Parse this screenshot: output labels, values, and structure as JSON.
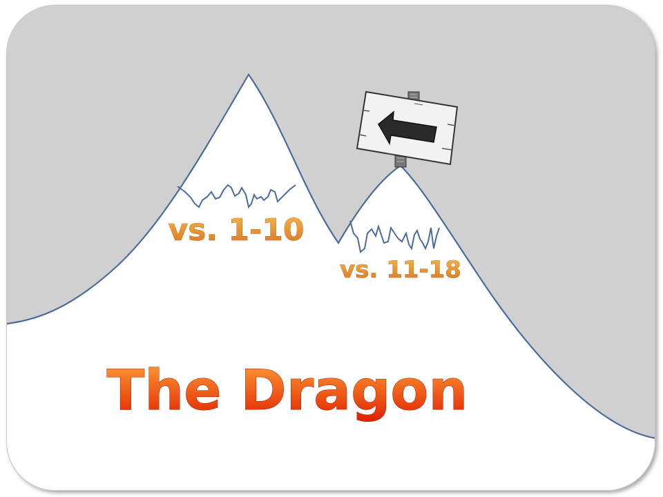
{
  "title": "The Dragon",
  "labels": {
    "left_peak": "vs. 1-10",
    "right_peak": "vs. 11-18"
  },
  "sign": {
    "arrow_direction": "left",
    "icon": "wooden-sign-arrow-icon"
  },
  "colors": {
    "sky": "#d0d0d0",
    "snow": "#ffffff",
    "outline": "#4a6a9a",
    "label_light": "#f6b84a",
    "label_dark": "#d9731f",
    "title_light": "#ffa336",
    "title_dark": "#e01e00",
    "frame_border": "#c8c8c8"
  }
}
